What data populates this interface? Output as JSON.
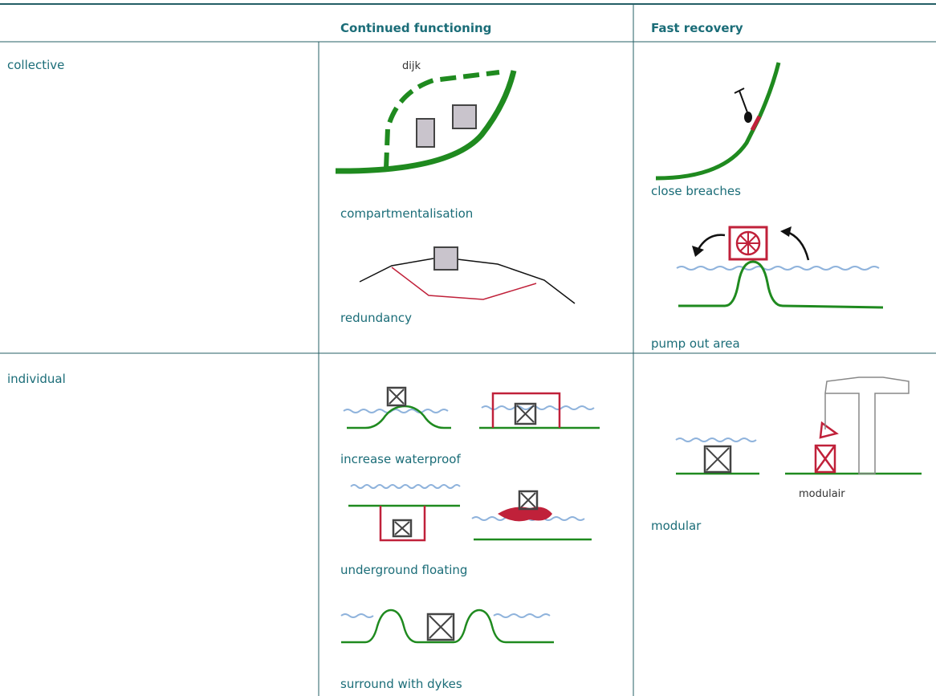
{
  "table": {
    "headers": [
      "Continued functioning",
      "Fast recovery"
    ],
    "rows": [
      {
        "label": "collective",
        "continued": [
          "compartmentalisation",
          "redundancy"
        ],
        "recovery": [
          "close breaches",
          "pump out area"
        ]
      },
      {
        "label": "individual",
        "continued": [
          "increase waterproof",
          "underground floating",
          "surround with dykes"
        ],
        "recovery": [
          "modular"
        ]
      }
    ]
  },
  "image_texts": {
    "dike": "dijk",
    "modular": "modulair"
  }
}
